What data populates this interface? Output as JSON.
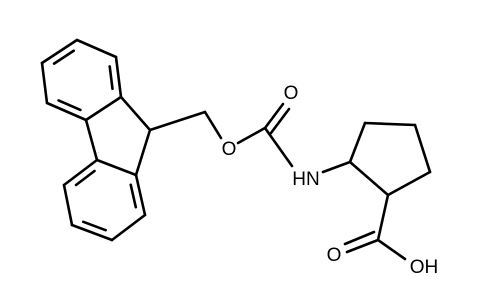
{
  "atoms": [
    {
      "label": "O"
    },
    {
      "label": "O"
    },
    {
      "label": "HN"
    },
    {
      "label": "O"
    },
    {
      "label": "OH"
    }
  ]
}
